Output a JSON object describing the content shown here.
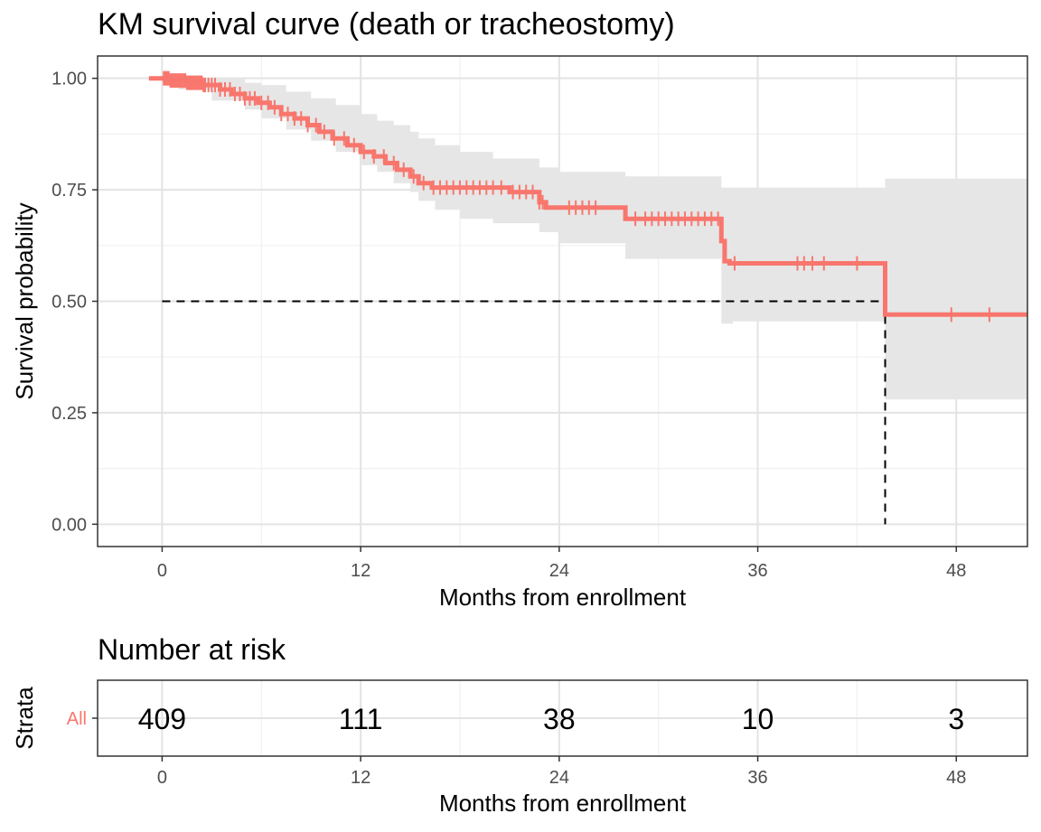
{
  "chart_data": [
    {
      "type": "line",
      "title": "KM survival curve (death or tracheostomy)",
      "xlabel": "Months from enrollment",
      "ylabel": "Survival probability",
      "xlim": [
        -3.9,
        52.3
      ],
      "ylim": [
        -0.05,
        1.05
      ],
      "x_ticks": [
        0,
        12,
        24,
        36,
        48
      ],
      "y_ticks": [
        0,
        0.25,
        0.5,
        0.75,
        1.0
      ],
      "y_tick_labels": [
        "0.00",
        "0.25",
        "0.50",
        "0.75",
        "1.00"
      ],
      "grid": true,
      "legend": "none",
      "series": [
        {
          "color": "#F8766D",
          "steps": [
            [
              0,
              1.0
            ],
            [
              0.5,
              0.995
            ],
            [
              1.5,
              0.99
            ],
            [
              2.5,
              0.985
            ],
            [
              3.5,
              0.975
            ],
            [
              4.2,
              0.965
            ],
            [
              5.0,
              0.955
            ],
            [
              5.8,
              0.945
            ],
            [
              6.5,
              0.935
            ],
            [
              7.2,
              0.92
            ],
            [
              8.0,
              0.91
            ],
            [
              8.8,
              0.895
            ],
            [
              9.5,
              0.88
            ],
            [
              10.3,
              0.865
            ],
            [
              11.2,
              0.85
            ],
            [
              12.0,
              0.835
            ],
            [
              12.8,
              0.825
            ],
            [
              13.5,
              0.81
            ],
            [
              14.2,
              0.795
            ],
            [
              15.0,
              0.78
            ],
            [
              15.5,
              0.765
            ],
            [
              16.3,
              0.755
            ],
            [
              21.0,
              0.745
            ],
            [
              22.8,
              0.722
            ],
            [
              23.2,
              0.71
            ],
            [
              28.0,
              0.685
            ],
            [
              33.8,
              0.635
            ],
            [
              34.0,
              0.59
            ],
            [
              34.3,
              0.585
            ],
            [
              43.7,
              0.47
            ],
            [
              52.3,
              0.47
            ]
          ],
          "censor_marks": [
            0.1,
            0.2,
            0.3,
            0.4,
            0.5,
            0.6,
            0.7,
            0.8,
            0.9,
            1.0,
            1.1,
            1.2,
            1.3,
            1.4,
            1.5,
            1.6,
            1.7,
            1.8,
            1.9,
            2.0,
            2.1,
            2.2,
            2.3,
            2.4,
            2.5,
            2.6,
            2.8,
            3.0,
            3.2,
            3.5,
            3.8,
            4.1,
            4.4,
            4.7,
            5.0,
            5.3,
            5.6,
            6.0,
            6.4,
            6.8,
            7.2,
            7.6,
            8.0,
            8.4,
            8.8,
            9.3,
            9.8,
            10.4,
            11.0,
            11.6,
            12.2,
            12.8,
            13.4,
            14.0,
            14.6,
            15.2,
            15.8,
            16.4,
            16.8,
            17.2,
            17.6,
            18.0,
            18.4,
            18.8,
            19.2,
            19.6,
            20.0,
            20.5,
            21.2,
            21.6,
            22.0,
            22.4,
            22.8,
            23.0,
            24.6,
            25.0,
            25.4,
            25.8,
            26.2,
            28.6,
            29.2,
            29.6,
            30.0,
            30.4,
            30.8,
            31.2,
            31.6,
            32.0,
            32.4,
            32.8,
            33.2,
            33.6,
            34.6,
            38.4,
            38.8,
            39.3,
            40.0,
            42.0,
            47.7,
            50.0
          ],
          "ci_steps": [
            [
              0,
              1.0,
              1.0
            ],
            [
              1.0,
              0.975,
              1.0
            ],
            [
              3.0,
              0.95,
              1.0
            ],
            [
              5.0,
              0.93,
              0.99
            ],
            [
              6.0,
              0.91,
              0.985
            ],
            [
              7.5,
              0.885,
              0.97
            ],
            [
              9.0,
              0.86,
              0.955
            ],
            [
              10.5,
              0.835,
              0.94
            ],
            [
              12.0,
              0.805,
              0.92
            ],
            [
              13.0,
              0.79,
              0.905
            ],
            [
              14.0,
              0.765,
              0.895
            ],
            [
              15.0,
              0.745,
              0.88
            ],
            [
              15.5,
              0.725,
              0.865
            ],
            [
              16.5,
              0.705,
              0.85
            ],
            [
              18.0,
              0.685,
              0.835
            ],
            [
              20.0,
              0.675,
              0.82
            ],
            [
              22.8,
              0.655,
              0.8
            ],
            [
              24.0,
              0.63,
              0.79
            ],
            [
              28.0,
              0.595,
              0.78
            ],
            [
              33.8,
              0.45,
              0.755
            ],
            [
              34.5,
              0.455,
              0.755
            ],
            [
              38.0,
              0.455,
              0.755
            ],
            [
              43.7,
              0.28,
              0.775
            ],
            [
              52.3,
              0.28,
              0.775
            ]
          ]
        }
      ],
      "annotations": {
        "median_line_y": 0.5,
        "median_x": 43.7
      }
    },
    {
      "type": "table",
      "title": "Number at risk",
      "xlabel": "Months from enrollment",
      "ylabel": "Strata",
      "xlim": [
        -3.9,
        52.3
      ],
      "x_ticks": [
        0,
        12,
        24,
        36,
        48
      ],
      "rows": [
        {
          "label": "All",
          "color": "#F8766D",
          "x": [
            0,
            12,
            24,
            36,
            48
          ],
          "values": [
            "409",
            "111",
            "38",
            "10",
            "3"
          ]
        }
      ]
    }
  ]
}
